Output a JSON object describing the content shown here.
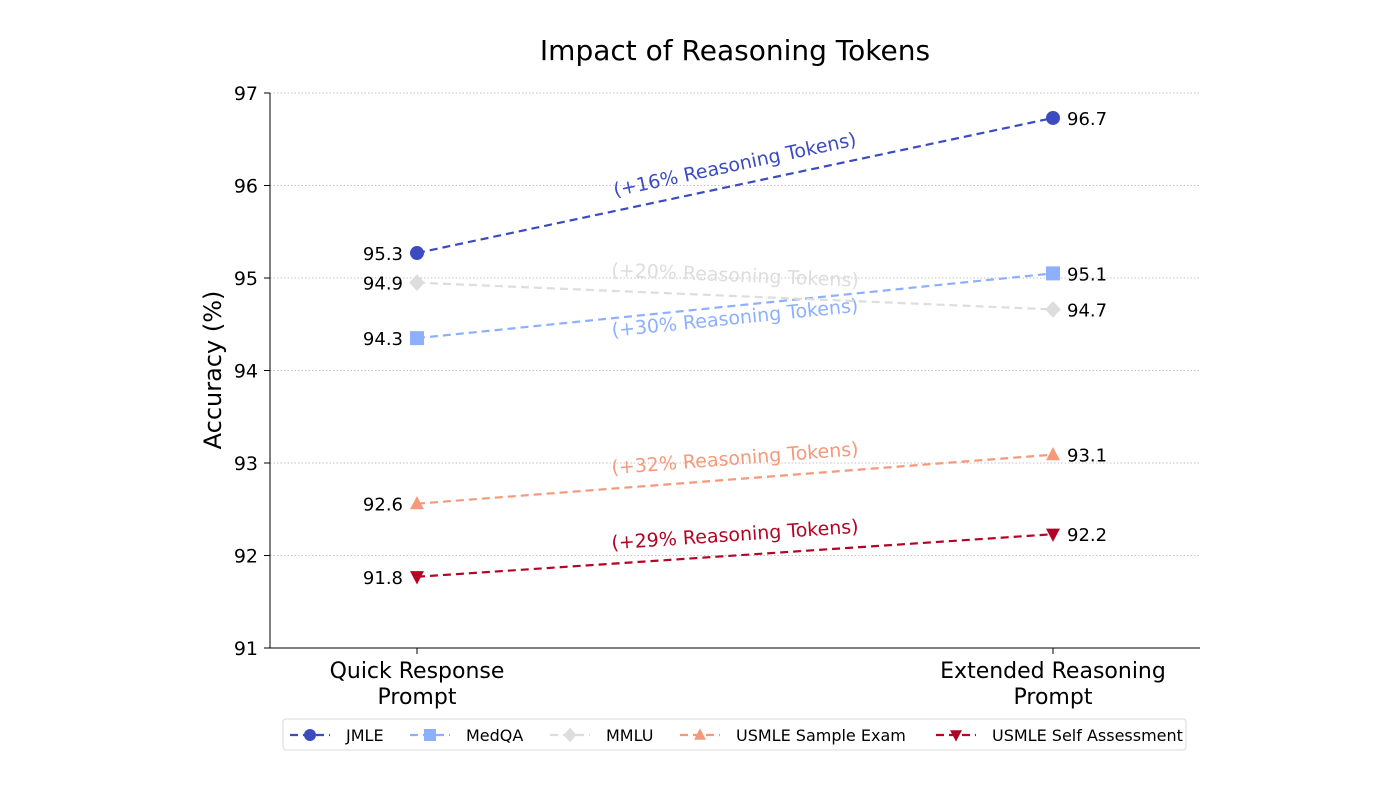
{
  "chart_data": {
    "type": "line",
    "title": "Impact of Reasoning Tokens",
    "xlabel": "",
    "ylabel": "Accuracy (%)",
    "categories": [
      "Quick Response\nPrompt",
      "Extended Reasoning\nPrompt"
    ],
    "ylim": [
      91,
      97
    ],
    "yticks": [
      91,
      92,
      93,
      94,
      95,
      96,
      97
    ],
    "grid": "horizontal dotted",
    "legend_placement": "bottom-center",
    "series": [
      {
        "name": "JMLE",
        "values": [
          95.27,
          96.73
        ],
        "labels": [
          "95.3",
          "96.7"
        ],
        "marker": "circle",
        "color": "#3b4cc0",
        "annotation": "(+16% Reasoning Tokens)"
      },
      {
        "name": "MedQA",
        "values": [
          94.35,
          95.05
        ],
        "labels": [
          "94.3",
          "95.1"
        ],
        "marker": "square",
        "color": "#8db0fe",
        "annotation": "(+30% Reasoning Tokens)"
      },
      {
        "name": "MMLU",
        "values": [
          94.95,
          94.66
        ],
        "labels": [
          "94.9",
          "94.7"
        ],
        "marker": "diamond",
        "color": "#dddddd",
        "annotation": "(+20% Reasoning Tokens)"
      },
      {
        "name": "USMLE Sample Exam",
        "values": [
          92.56,
          93.09
        ],
        "labels": [
          "92.6",
          "93.1"
        ],
        "marker": "triangle-up",
        "color": "#f49a7b",
        "annotation": "(+32% Reasoning Tokens)"
      },
      {
        "name": "USMLE Self Assessment",
        "values": [
          91.77,
          92.23
        ],
        "labels": [
          "91.8",
          "92.2"
        ],
        "marker": "triangle-down",
        "color": "#b40426",
        "annotation": "(+29% Reasoning Tokens)"
      }
    ]
  }
}
